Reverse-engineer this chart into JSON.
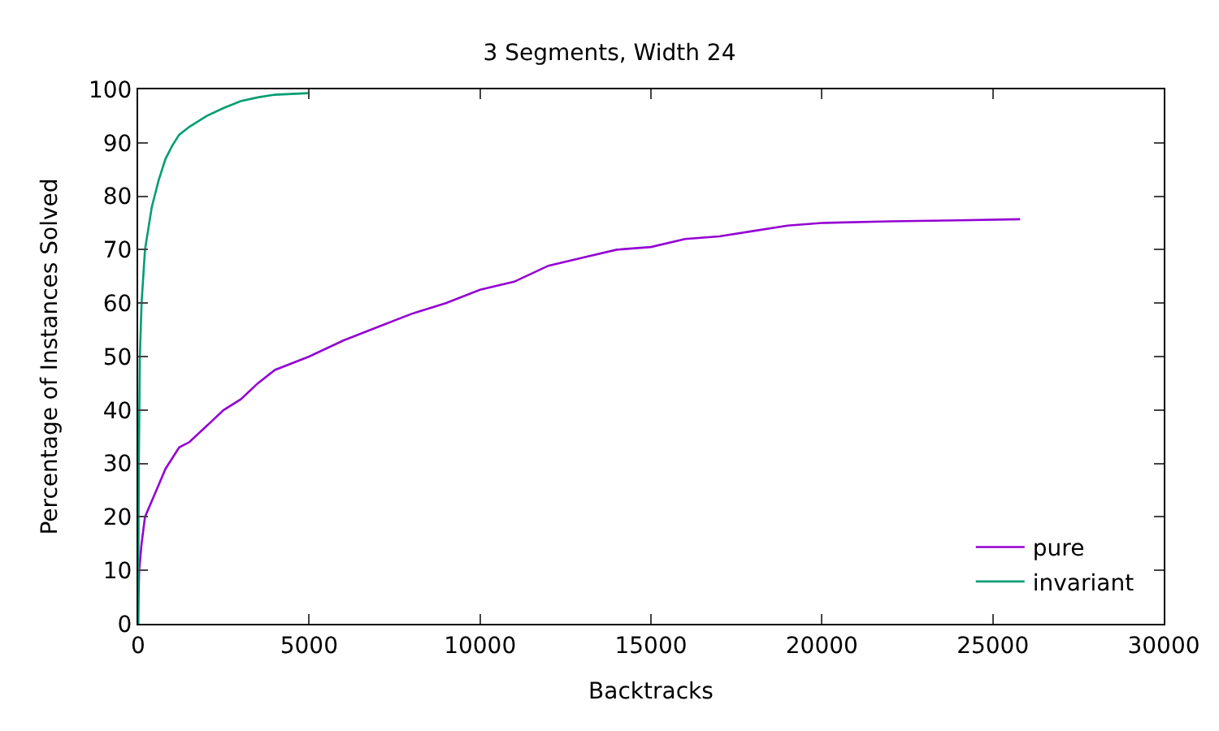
{
  "chart_data": {
    "type": "line",
    "title": "3 Segments, Width 24",
    "xlabel": "Backtracks",
    "ylabel": "Percentage of Instances Solved",
    "xlim": [
      0,
      30000
    ],
    "xticks": [
      0,
      5000,
      10000,
      15000,
      20000,
      25000,
      30000
    ],
    "ylim": [
      0,
      100
    ],
    "yticks": [
      0,
      10,
      20,
      30,
      40,
      50,
      60,
      70,
      80,
      90,
      100
    ],
    "legend": "bottom right",
    "marker": "none",
    "line_style": "solid",
    "series": [
      {
        "name": "pure",
        "color": "#9400d3",
        "x": [
          0,
          10,
          30,
          100,
          200,
          400,
          600,
          800,
          1000,
          1200,
          1500,
          2000,
          2500,
          3000,
          3500,
          4000,
          5000,
          6000,
          7000,
          8000,
          9000,
          10000,
          11000,
          12000,
          13000,
          14000,
          15000,
          16000,
          17000,
          18000,
          19000,
          20000,
          22000,
          24000,
          25800
        ],
        "values": [
          0,
          5,
          10,
          15,
          20,
          23,
          26,
          29,
          31,
          33,
          34,
          37,
          40,
          42,
          45,
          47.5,
          50,
          53,
          55.5,
          58,
          60,
          62.5,
          64,
          67,
          68.5,
          70,
          70.5,
          72,
          72.5,
          73.5,
          74.5,
          75,
          75.3,
          75.5,
          75.7
        ]
      },
      {
        "name": "invariant",
        "color": "#009e73",
        "x": [
          0,
          20,
          50,
          100,
          200,
          400,
          600,
          800,
          1000,
          1200,
          1500,
          2000,
          2500,
          3000,
          3500,
          4000,
          5000
        ],
        "values": [
          0,
          30,
          50,
          60,
          70,
          78,
          83,
          87,
          89.5,
          91.5,
          93,
          95,
          96.5,
          97.8,
          98.5,
          99,
          99.3
        ]
      }
    ]
  }
}
